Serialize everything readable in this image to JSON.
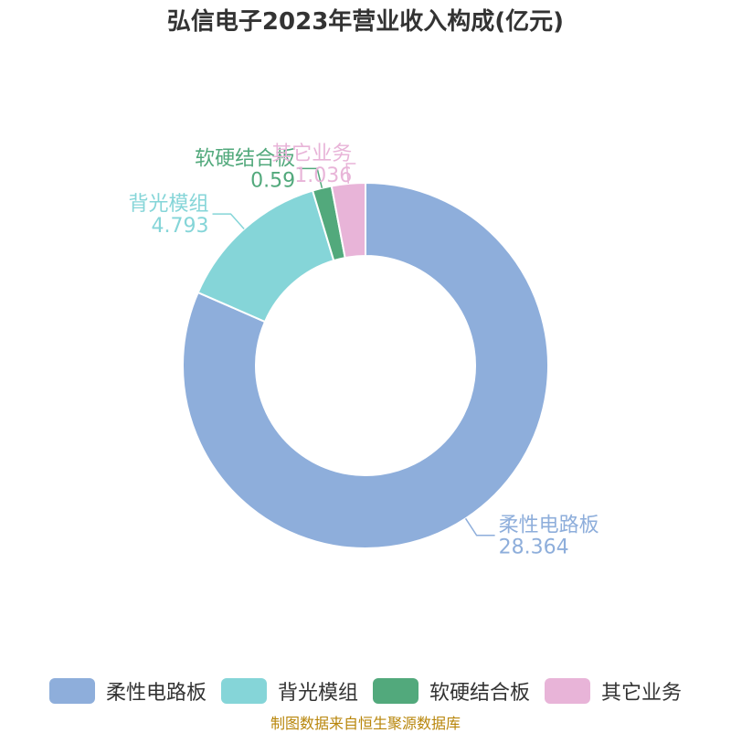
{
  "title": "弘信电子2023年营业收入构成(亿元)",
  "source": "制图数据来自恒生聚源数据库",
  "chart_data": {
    "type": "pie",
    "donut": true,
    "legend_position": "bottom",
    "slices": [
      {
        "name": "柔性电路板",
        "value": 28.364,
        "value_label": "28.364",
        "color": "#8eaedb"
      },
      {
        "name": "背光模组",
        "value": 4.793,
        "value_label": "4.793",
        "color": "#85d5d8"
      },
      {
        "name": "软硬结合板",
        "value": 0.59,
        "value_label": "0.59",
        "color": "#52a97c"
      },
      {
        "name": "其它业务",
        "value": 1.036,
        "value_label": "1.036",
        "color": "#e8b4d8"
      }
    ]
  }
}
